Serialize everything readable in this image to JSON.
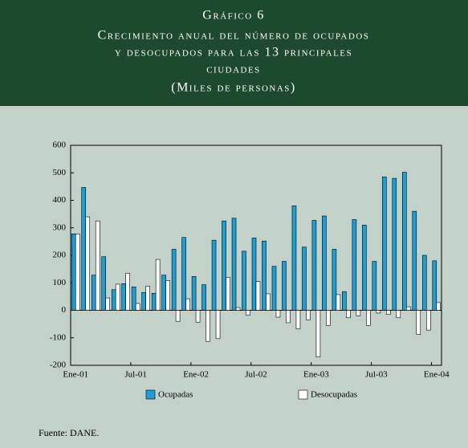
{
  "chart_data": {
    "type": "bar",
    "title_lines": [
      "Gráfico 6",
      "Crecimiento anual del número de ocupados",
      "y desocupados para las 13 principales",
      "ciudades",
      "(Miles de personas)"
    ],
    "categories": [
      "Ene-01",
      null,
      null,
      null,
      null,
      null,
      "Jul-01",
      null,
      null,
      null,
      null,
      null,
      "Ene-02",
      null,
      null,
      null,
      null,
      null,
      "Jul-02",
      null,
      null,
      null,
      null,
      null,
      "Ene-03",
      null,
      null,
      null,
      null,
      null,
      "Jul-03",
      null,
      null,
      null,
      null,
      null,
      "Ene-04"
    ],
    "series": [
      {
        "name": "Ocupadas",
        "color": "#1aa0d8",
        "values": [
          278,
          447,
          128,
          195,
          75,
          97,
          85,
          65,
          62,
          128,
          222,
          265,
          123,
          93,
          255,
          325,
          335,
          215,
          263,
          252,
          160,
          178,
          380,
          230,
          327,
          343,
          222,
          68,
          330,
          310,
          178,
          485,
          480,
          502,
          360,
          200,
          180
        ]
      },
      {
        "name": "Desocupadas",
        "color": "#ffffff",
        "values": [
          278,
          340,
          325,
          45,
          95,
          135,
          25,
          88,
          185,
          108,
          -40,
          42,
          -43,
          -113,
          -103,
          120,
          10,
          -17,
          105,
          60,
          -25,
          -45,
          -68,
          -35,
          -170,
          -55,
          57,
          -27,
          -20,
          -55,
          -10,
          -15,
          -27,
          13,
          -88,
          -72,
          28
        ]
      }
    ],
    "ylim": [
      -200,
      600
    ],
    "yticks": [
      -200,
      -100,
      0,
      100,
      200,
      300,
      400,
      500,
      600
    ],
    "source": "Fuente: DANE."
  }
}
